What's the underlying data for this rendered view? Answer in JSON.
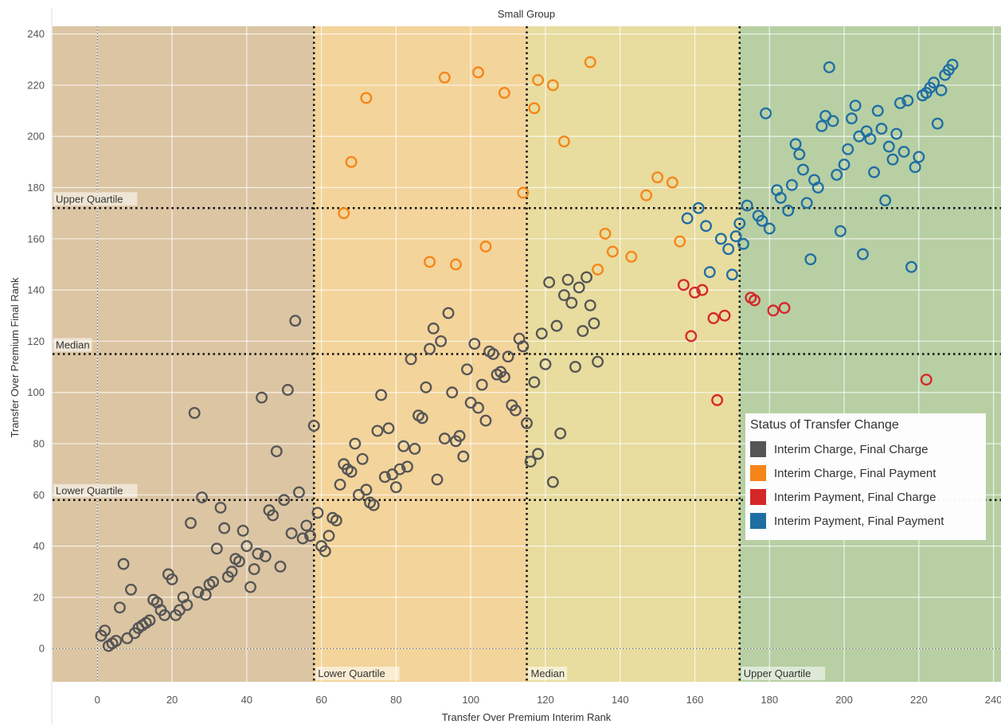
{
  "chart_data": {
    "type": "scatter",
    "title": "Small Group",
    "xlabel": "Transfer Over Premium Interim Rank",
    "ylabel": "Transfer Over Premium Final Rank",
    "xlim": [
      -12,
      242
    ],
    "ylim": [
      -13,
      243
    ],
    "x_ticks": [
      0,
      20,
      40,
      60,
      80,
      100,
      120,
      140,
      160,
      180,
      200,
      220,
      240
    ],
    "y_ticks": [
      0,
      20,
      40,
      60,
      80,
      100,
      120,
      140,
      160,
      180,
      200,
      220,
      240
    ],
    "grid": true,
    "legend_position": "bottom-right",
    "legend_title": "Status of Transfer Change",
    "reference_lines": {
      "x": [
        {
          "label": "Lower Quartile",
          "value": 58
        },
        {
          "label": "Median",
          "value": 115
        },
        {
          "label": "Upper Quartile",
          "value": 172
        }
      ],
      "y": [
        {
          "label": "Upper Quartile",
          "value": 172
        },
        {
          "label": "Median",
          "value": 115
        },
        {
          "label": "Lower Quartile",
          "value": 58
        }
      ]
    },
    "bands": [
      {
        "from": -12,
        "to": 58,
        "color": "#dcc5a3"
      },
      {
        "from": 58,
        "to": 115,
        "color": "#f3d49b"
      },
      {
        "from": 115,
        "to": 172,
        "color": "#e8dc9e"
      },
      {
        "from": 172,
        "to": 242,
        "color": "#b7cfa3"
      }
    ],
    "series": [
      {
        "name": "Interim Charge, Final Charge",
        "color": "#555555",
        "points": [
          [
            1,
            5
          ],
          [
            2,
            7
          ],
          [
            3,
            1
          ],
          [
            4,
            2
          ],
          [
            5,
            3
          ],
          [
            6,
            16
          ],
          [
            7,
            33
          ],
          [
            8,
            4
          ],
          [
            9,
            23
          ],
          [
            10,
            6
          ],
          [
            11,
            8
          ],
          [
            12,
            9
          ],
          [
            13,
            10
          ],
          [
            14,
            11
          ],
          [
            15,
            19
          ],
          [
            16,
            18
          ],
          [
            17,
            15
          ],
          [
            18,
            13
          ],
          [
            19,
            29
          ],
          [
            20,
            27
          ],
          [
            21,
            13
          ],
          [
            22,
            15
          ],
          [
            23,
            20
          ],
          [
            24,
            17
          ],
          [
            25,
            49
          ],
          [
            26,
            92
          ],
          [
            27,
            22
          ],
          [
            28,
            59
          ],
          [
            29,
            21
          ],
          [
            30,
            25
          ],
          [
            31,
            26
          ],
          [
            32,
            39
          ],
          [
            33,
            55
          ],
          [
            34,
            47
          ],
          [
            35,
            28
          ],
          [
            36,
            30
          ],
          [
            37,
            35
          ],
          [
            38,
            34
          ],
          [
            39,
            46
          ],
          [
            40,
            40
          ],
          [
            41,
            24
          ],
          [
            42,
            31
          ],
          [
            43,
            37
          ],
          [
            44,
            98
          ],
          [
            45,
            36
          ],
          [
            46,
            54
          ],
          [
            47,
            52
          ],
          [
            48,
            77
          ],
          [
            49,
            32
          ],
          [
            50,
            58
          ],
          [
            51,
            101
          ],
          [
            52,
            45
          ],
          [
            53,
            128
          ],
          [
            54,
            61
          ],
          [
            55,
            43
          ],
          [
            56,
            48
          ],
          [
            57,
            44
          ],
          [
            58,
            87
          ],
          [
            59,
            53
          ],
          [
            60,
            40
          ],
          [
            61,
            38
          ],
          [
            62,
            44
          ],
          [
            63,
            51
          ],
          [
            64,
            50
          ],
          [
            65,
            64
          ],
          [
            66,
            72
          ],
          [
            67,
            70
          ],
          [
            68,
            69
          ],
          [
            69,
            80
          ],
          [
            70,
            60
          ],
          [
            71,
            74
          ],
          [
            72,
            62
          ],
          [
            73,
            57
          ],
          [
            74,
            56
          ],
          [
            75,
            85
          ],
          [
            76,
            99
          ],
          [
            77,
            67
          ],
          [
            78,
            86
          ],
          [
            79,
            68
          ],
          [
            80,
            63
          ],
          [
            81,
            70
          ],
          [
            82,
            79
          ],
          [
            83,
            71
          ],
          [
            84,
            113
          ],
          [
            85,
            78
          ],
          [
            86,
            91
          ],
          [
            87,
            90
          ],
          [
            88,
            102
          ],
          [
            89,
            117
          ],
          [
            90,
            125
          ],
          [
            91,
            66
          ],
          [
            92,
            120
          ],
          [
            93,
            82
          ],
          [
            94,
            131
          ],
          [
            95,
            100
          ],
          [
            96,
            81
          ],
          [
            97,
            83
          ],
          [
            98,
            75
          ],
          [
            99,
            109
          ],
          [
            100,
            96
          ],
          [
            101,
            119
          ],
          [
            102,
            94
          ],
          [
            103,
            103
          ],
          [
            104,
            89
          ],
          [
            105,
            116
          ],
          [
            106,
            115
          ],
          [
            107,
            107
          ],
          [
            108,
            108
          ],
          [
            109,
            106
          ],
          [
            110,
            114
          ],
          [
            111,
            95
          ],
          [
            112,
            93
          ],
          [
            113,
            121
          ],
          [
            114,
            118
          ],
          [
            115,
            88
          ],
          [
            116,
            73
          ],
          [
            117,
            104
          ],
          [
            118,
            76
          ],
          [
            119,
            123
          ],
          [
            120,
            111
          ],
          [
            121,
            143
          ],
          [
            122,
            65
          ],
          [
            123,
            126
          ],
          [
            124,
            84
          ],
          [
            125,
            138
          ],
          [
            126,
            144
          ],
          [
            127,
            135
          ],
          [
            128,
            110
          ],
          [
            129,
            141
          ],
          [
            130,
            124
          ],
          [
            131,
            145
          ],
          [
            132,
            134
          ],
          [
            133,
            127
          ],
          [
            134,
            112
          ]
        ]
      },
      {
        "name": "Interim Charge, Final Payment",
        "color": "#f58518",
        "points": [
          [
            66,
            170
          ],
          [
            68,
            190
          ],
          [
            72,
            215
          ],
          [
            89,
            151
          ],
          [
            93,
            223
          ],
          [
            96,
            150
          ],
          [
            102,
            225
          ],
          [
            104,
            157
          ],
          [
            109,
            217
          ],
          [
            114,
            178
          ],
          [
            117,
            211
          ],
          [
            118,
            222
          ],
          [
            122,
            220
          ],
          [
            125,
            198
          ],
          [
            132,
            229
          ],
          [
            134,
            148
          ],
          [
            136,
            162
          ],
          [
            138,
            155
          ],
          [
            143,
            153
          ],
          [
            147,
            177
          ],
          [
            150,
            184
          ],
          [
            154,
            182
          ],
          [
            156,
            159
          ]
        ]
      },
      {
        "name": "Interim Payment, Final Charge",
        "color": "#d62728",
        "points": [
          [
            157,
            142
          ],
          [
            159,
            122
          ],
          [
            160,
            139
          ],
          [
            162,
            140
          ],
          [
            165,
            129
          ],
          [
            166,
            97
          ],
          [
            168,
            130
          ],
          [
            175,
            137
          ],
          [
            176,
            136
          ],
          [
            181,
            132
          ],
          [
            184,
            133
          ],
          [
            222,
            105
          ]
        ]
      },
      {
        "name": "Interim Payment, Final Payment",
        "color": "#1f6ea3",
        "points": [
          [
            158,
            168
          ],
          [
            161,
            172
          ],
          [
            163,
            165
          ],
          [
            164,
            147
          ],
          [
            167,
            160
          ],
          [
            169,
            156
          ],
          [
            170,
            146
          ],
          [
            171,
            161
          ],
          [
            172,
            166
          ],
          [
            173,
            158
          ],
          [
            174,
            173
          ],
          [
            177,
            169
          ],
          [
            178,
            167
          ],
          [
            179,
            209
          ],
          [
            180,
            164
          ],
          [
            182,
            179
          ],
          [
            183,
            176
          ],
          [
            185,
            171
          ],
          [
            186,
            181
          ],
          [
            187,
            197
          ],
          [
            188,
            193
          ],
          [
            189,
            187
          ],
          [
            190,
            174
          ],
          [
            191,
            152
          ],
          [
            192,
            183
          ],
          [
            193,
            180
          ],
          [
            194,
            204
          ],
          [
            195,
            208
          ],
          [
            196,
            227
          ],
          [
            197,
            206
          ],
          [
            198,
            185
          ],
          [
            199,
            163
          ],
          [
            200,
            189
          ],
          [
            201,
            195
          ],
          [
            202,
            207
          ],
          [
            203,
            212
          ],
          [
            204,
            200
          ],
          [
            205,
            154
          ],
          [
            206,
            202
          ],
          [
            207,
            199
          ],
          [
            208,
            186
          ],
          [
            209,
            210
          ],
          [
            210,
            203
          ],
          [
            211,
            175
          ],
          [
            212,
            196
          ],
          [
            213,
            191
          ],
          [
            214,
            201
          ],
          [
            215,
            213
          ],
          [
            216,
            194
          ],
          [
            217,
            214
          ],
          [
            218,
            149
          ],
          [
            219,
            188
          ],
          [
            220,
            192
          ],
          [
            221,
            216
          ],
          [
            222,
            217
          ],
          [
            223,
            219
          ],
          [
            224,
            221
          ],
          [
            225,
            205
          ],
          [
            226,
            218
          ],
          [
            227,
            224
          ],
          [
            228,
            226
          ],
          [
            229,
            228
          ]
        ]
      }
    ]
  }
}
